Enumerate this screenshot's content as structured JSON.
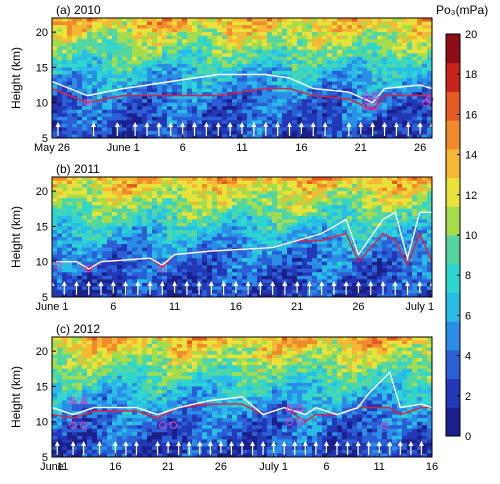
{
  "colors": {
    "ramp": [
      "#1a1f8a",
      "#2338b6",
      "#2b5fd6",
      "#2b8ee6",
      "#28bce6",
      "#2fd6d0",
      "#55d6a0",
      "#a4dc4e",
      "#e8e23a",
      "#f6b834",
      "#f08a2c",
      "#e35a22",
      "#c8241c",
      "#8e0c14"
    ],
    "tropopause_cold_point": "#ffffff",
    "tropopause_lapse_rate": "#e02040",
    "markers": "#e040c0"
  },
  "colorbar": {
    "title": "Po₃(mPa)",
    "ticks": [
      "0",
      "2",
      "4",
      "6",
      "8",
      "10",
      "12",
      "14",
      "16",
      "18",
      "20"
    ],
    "range": [
      0,
      20
    ]
  },
  "chart_data": [
    {
      "type": "heatmap",
      "title": "(a) 2010",
      "ylabel": "Height (km)",
      "ylim": [
        5,
        22
      ],
      "yticks": [
        "5",
        "10",
        "15",
        "20"
      ],
      "xlim": [
        0,
        32
      ],
      "xticks": [
        {
          "pos": 0,
          "label": "May 26"
        },
        {
          "pos": 6,
          "label": "June 1"
        },
        {
          "pos": 11,
          "label": "6"
        },
        {
          "pos": 16,
          "label": "11"
        },
        {
          "pos": 21,
          "label": "16"
        },
        {
          "pos": 26,
          "label": "21"
        },
        {
          "pos": 31,
          "label": "26"
        }
      ],
      "tropopause_cold_point": [
        [
          0,
          13
        ],
        [
          3,
          11
        ],
        [
          6,
          12
        ],
        [
          10,
          13
        ],
        [
          14,
          14
        ],
        [
          18,
          14
        ],
        [
          20,
          13.5
        ],
        [
          22,
          12
        ],
        [
          25,
          11.5
        ],
        [
          27,
          10
        ],
        [
          28,
          12
        ],
        [
          31,
          12.5
        ],
        [
          32,
          12
        ]
      ],
      "tropopause_lapse_rate": [
        [
          0,
          12
        ],
        [
          3,
          10
        ],
        [
          6,
          11
        ],
        [
          10,
          11
        ],
        [
          14,
          11
        ],
        [
          18,
          12
        ],
        [
          20,
          12
        ],
        [
          22,
          11
        ],
        [
          25,
          10.5
        ],
        [
          27,
          9
        ],
        [
          28,
          11
        ],
        [
          31,
          11
        ],
        [
          32,
          11
        ]
      ],
      "soundings": [
        0.5,
        3.5,
        5.5,
        7,
        8,
        9,
        10,
        11,
        12,
        13,
        14,
        15,
        16,
        17,
        18,
        19,
        20,
        21,
        22,
        23,
        25,
        26,
        27,
        28,
        29,
        30,
        31,
        32
      ],
      "triangles": [
        [
          26.5,
          11
        ],
        [
          27.2,
          11
        ]
      ],
      "circles": [
        [
          26.5,
          9.5
        ],
        [
          27.2,
          9.5
        ],
        [
          31.5,
          10
        ],
        [
          31.8,
          10.5
        ],
        [
          3,
          10
        ]
      ]
    },
    {
      "type": "heatmap",
      "title": "(b) 2011",
      "ylabel": "Height (km)",
      "ylim": [
        5,
        22
      ],
      "yticks": [
        "5",
        "10",
        "15",
        "20"
      ],
      "xlim": [
        0,
        31
      ],
      "xticks": [
        {
          "pos": 0,
          "label": "June 1"
        },
        {
          "pos": 5,
          "label": "6"
        },
        {
          "pos": 10,
          "label": "11"
        },
        {
          "pos": 15,
          "label": "16"
        },
        {
          "pos": 20,
          "label": "21"
        },
        {
          "pos": 25,
          "label": "26"
        },
        {
          "pos": 30,
          "label": "July 1"
        }
      ],
      "tropopause_cold_point": [
        [
          0,
          10
        ],
        [
          2,
          10
        ],
        [
          3,
          9
        ],
        [
          4,
          10
        ],
        [
          8,
          10.5
        ],
        [
          9,
          9.5
        ],
        [
          10,
          11
        ],
        [
          13,
          11.5
        ],
        [
          18,
          12
        ],
        [
          20,
          13
        ],
        [
          22,
          14
        ],
        [
          24,
          16
        ],
        [
          25,
          11
        ],
        [
          27,
          16
        ],
        [
          28,
          17
        ],
        [
          29,
          10.5
        ],
        [
          30,
          17
        ],
        [
          31,
          17
        ]
      ],
      "tropopause_lapse_rate": [
        [
          0,
          10
        ],
        [
          2,
          10
        ],
        [
          3,
          8.8
        ],
        [
          4,
          10
        ],
        [
          8,
          10.5
        ],
        [
          9,
          9.2
        ],
        [
          10,
          11
        ],
        [
          13,
          11.5
        ],
        [
          18,
          12
        ],
        [
          20,
          13
        ],
        [
          22,
          13
        ],
        [
          24,
          14
        ],
        [
          25,
          10
        ],
        [
          27,
          14
        ],
        [
          28,
          13
        ],
        [
          29,
          9.5
        ],
        [
          30,
          14
        ],
        [
          31,
          10
        ]
      ],
      "soundings": [
        0,
        1,
        2,
        3,
        4,
        5,
        6,
        7,
        8,
        9,
        10,
        11,
        12,
        13,
        14,
        15,
        16,
        17,
        18,
        19,
        20,
        21,
        22,
        23,
        24,
        25,
        26,
        27,
        28,
        29,
        30,
        31
      ],
      "triangles": [],
      "circles": [
        [
          3,
          9
        ],
        [
          9,
          9
        ],
        [
          0.5,
          9.5
        ]
      ]
    },
    {
      "type": "heatmap",
      "title": "(c) 2012",
      "ylabel": "Height (km)",
      "ylim": [
        5,
        22
      ],
      "yticks": [
        "5",
        "10",
        "15",
        "20"
      ],
      "xlim": [
        0,
        36
      ],
      "xticks": [
        {
          "pos": 0,
          "label": "June"
        },
        {
          "pos": 1,
          "label": "11"
        },
        {
          "pos": 6,
          "label": "16"
        },
        {
          "pos": 11,
          "label": "21"
        },
        {
          "pos": 16,
          "label": "26"
        },
        {
          "pos": 21,
          "label": "July 1"
        },
        {
          "pos": 26,
          "label": "6"
        },
        {
          "pos": 31,
          "label": "11"
        },
        {
          "pos": 36,
          "label": "16"
        }
      ],
      "tropopause_cold_point": [
        [
          0,
          12
        ],
        [
          2,
          11
        ],
        [
          4,
          12
        ],
        [
          8,
          12
        ],
        [
          10,
          11
        ],
        [
          12,
          12
        ],
        [
          15,
          13
        ],
        [
          18,
          13.5
        ],
        [
          20,
          11
        ],
        [
          22,
          12
        ],
        [
          24,
          11
        ],
        [
          25,
          12
        ],
        [
          27,
          11
        ],
        [
          29,
          12
        ],
        [
          30,
          14
        ],
        [
          32,
          17
        ],
        [
          33,
          12
        ],
        [
          35,
          12.5
        ],
        [
          36,
          12
        ]
      ],
      "tropopause_lapse_rate": [
        [
          0,
          11
        ],
        [
          2,
          10.5
        ],
        [
          4,
          11.5
        ],
        [
          8,
          11.5
        ],
        [
          10,
          10.5
        ],
        [
          12,
          12
        ],
        [
          15,
          12.5
        ],
        [
          18,
          12.5
        ],
        [
          20,
          11
        ],
        [
          22,
          12
        ],
        [
          24,
          10
        ],
        [
          25,
          11
        ],
        [
          27,
          11
        ],
        [
          29,
          12
        ],
        [
          30,
          12
        ],
        [
          32,
          12
        ],
        [
          33,
          11
        ],
        [
          35,
          12
        ],
        [
          36,
          12
        ]
      ],
      "soundings": [
        0.5,
        2,
        3,
        4.5,
        6,
        7,
        8,
        10,
        11,
        12,
        13,
        14,
        15,
        16,
        17,
        18,
        19,
        20,
        21,
        22,
        23,
        24,
        25,
        26,
        27,
        28,
        29,
        30,
        31,
        32,
        33,
        34,
        35
      ],
      "triangles": [
        [
          2,
          13
        ],
        [
          3,
          13
        ],
        [
          22.5,
          12
        ],
        [
          23.5,
          12
        ]
      ],
      "circles": [
        [
          2,
          9.5
        ],
        [
          3,
          9.5
        ],
        [
          10.5,
          9.5
        ],
        [
          11.5,
          9.5
        ],
        [
          22.5,
          10
        ],
        [
          23.5,
          10
        ],
        [
          31.5,
          9.5
        ]
      ]
    }
  ]
}
